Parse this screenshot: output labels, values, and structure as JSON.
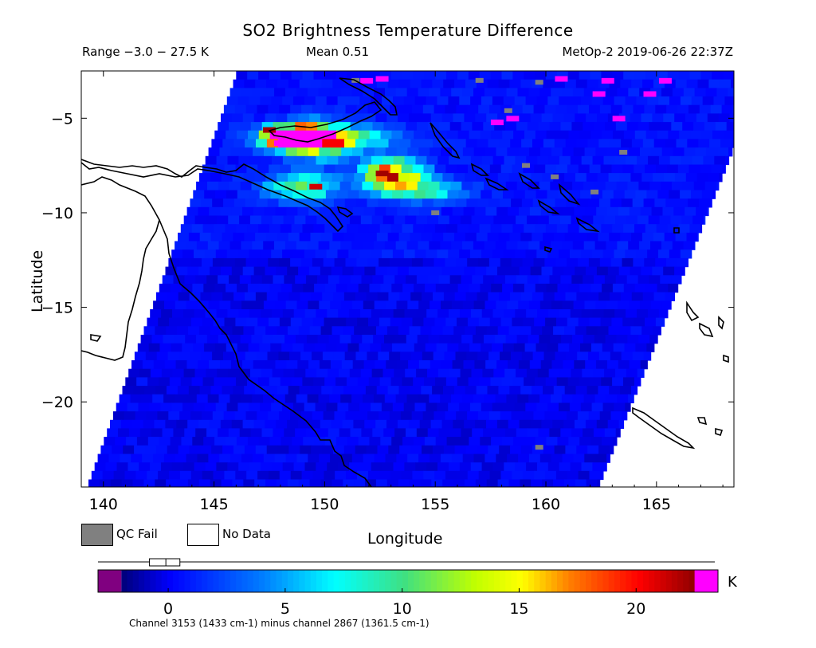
{
  "title": "SO2 Brightness Temperature Difference",
  "range_text": "Range −3.0 − 27.5 K",
  "mean_text": "Mean 0.51",
  "satellite_text": "MetOp-2 2019-06-26 22:37Z",
  "legend": {
    "qc_fail": "QC Fail",
    "no_data": "No Data",
    "qc_fail_color": "#808080",
    "no_data_color": "#ffffff"
  },
  "footnote": "Channel 3153 (1433 cm-1) minus channel 2867 (1361.5 cm-1)",
  "colorbar": {
    "unit": "K",
    "ticks": [
      {
        "value": 0,
        "label": "0"
      },
      {
        "value": 5,
        "label": "5"
      },
      {
        "value": 10,
        "label": "10"
      },
      {
        "value": 15,
        "label": "15"
      },
      {
        "value": 20,
        "label": "20"
      }
    ],
    "min": -3.0,
    "max": 23.5,
    "under_color": "#800080",
    "over_color": "#ff00ff",
    "box_range": [
      -3.0,
      0.0
    ],
    "box_median": -0.1,
    "stops": [
      {
        "value": -2.0,
        "color": "#000080"
      },
      {
        "value": 0,
        "color": "#0000ff"
      },
      {
        "value": 4,
        "color": "#0080ff"
      },
      {
        "value": 7,
        "color": "#00ffff"
      },
      {
        "value": 10,
        "color": "#40e080"
      },
      {
        "value": 13,
        "color": "#c0ff00"
      },
      {
        "value": 15,
        "color": "#ffff00"
      },
      {
        "value": 17,
        "color": "#ff8000"
      },
      {
        "value": 20,
        "color": "#ff0000"
      },
      {
        "value": 22.5,
        "color": "#8b0000"
      }
    ]
  },
  "chart_data": {
    "type": "heatmap",
    "title": "SO2 Brightness Temperature Difference",
    "xlabel": "Longitude",
    "ylabel": "Latitude",
    "xlim": [
      139,
      168.5
    ],
    "ylim": [
      -24.5,
      -2.5
    ],
    "x_ticks": [
      140,
      145,
      150,
      155,
      160,
      165
    ],
    "x_tick_labels": [
      "140",
      "145",
      "150",
      "155",
      "160",
      "165"
    ],
    "y_ticks": [
      -5,
      -10,
      -15,
      -20
    ],
    "y_tick_labels": [
      "−5",
      "−10",
      "−15",
      "−20"
    ],
    "swath": {
      "top_left": [
        146.0,
        -2.5
      ],
      "bottom_left": [
        139.2,
        -24.5
      ],
      "top_right": [
        169.8,
        -2.5
      ],
      "bottom_right": [
        162.3,
        -24.5
      ]
    },
    "background_value": 0.5,
    "plumes": [
      {
        "lon": 148.3,
        "lat": -5.8,
        "rx": 1.3,
        "ry": 0.6,
        "peak": 22
      },
      {
        "lon": 149.5,
        "lat": -6.0,
        "rx": 1.5,
        "ry": 0.9,
        "peak": 15
      },
      {
        "lon": 148.8,
        "lat": -8.4,
        "rx": 1.5,
        "ry": 0.7,
        "peak": 11
      },
      {
        "lon": 152.8,
        "lat": -7.8,
        "rx": 1.3,
        "ry": 0.9,
        "peak": 18
      },
      {
        "lon": 150.5,
        "lat": -5.8,
        "rx": 2.5,
        "ry": 0.5,
        "peak": 9
      },
      {
        "lon": 154.5,
        "lat": -8.6,
        "rx": 1.6,
        "ry": 0.6,
        "peak": 7
      }
    ],
    "high_points": [
      {
        "lon": 147.5,
        "lat": -5.6,
        "value": 22
      },
      {
        "lon": 148.0,
        "lat": -6.3,
        "value": 23.5
      },
      {
        "lon": 149.6,
        "lat": -8.6,
        "value": 21
      },
      {
        "lon": 152.6,
        "lat": -7.9,
        "value": 22
      },
      {
        "lon": 151.9,
        "lat": -3.0,
        "value": 23.5
      },
      {
        "lon": 152.6,
        "lat": -2.9,
        "value": 23.5
      },
      {
        "lon": 160.7,
        "lat": -2.9,
        "value": 23.5
      },
      {
        "lon": 162.4,
        "lat": -3.7,
        "value": 23.5
      },
      {
        "lon": 163.3,
        "lat": -5.0,
        "value": 23.5
      },
      {
        "lon": 165.4,
        "lat": -3.0,
        "value": 23.5
      },
      {
        "lon": 157.8,
        "lat": -5.2,
        "value": 23.5
      },
      {
        "lon": 158.5,
        "lat": -5.0,
        "value": 23.5
      },
      {
        "lon": 162.8,
        "lat": -3.0,
        "value": 23.5
      },
      {
        "lon": 164.7,
        "lat": -3.7,
        "value": 23.5
      }
    ],
    "qc_fail_points": [
      {
        "lon": 151.4,
        "lat": -3.0
      },
      {
        "lon": 159.7,
        "lat": -3.1
      },
      {
        "lon": 158.3,
        "lat": -4.6
      },
      {
        "lon": 163.5,
        "lat": -6.8
      },
      {
        "lon": 160.4,
        "lat": -8.1
      },
      {
        "lon": 162.2,
        "lat": -8.9
      },
      {
        "lon": 159.1,
        "lat": -7.5
      },
      {
        "lon": 155.0,
        "lat": -10.0
      },
      {
        "lon": 157.0,
        "lat": -3.0
      },
      {
        "lon": 159.7,
        "lat": -22.4
      }
    ]
  }
}
